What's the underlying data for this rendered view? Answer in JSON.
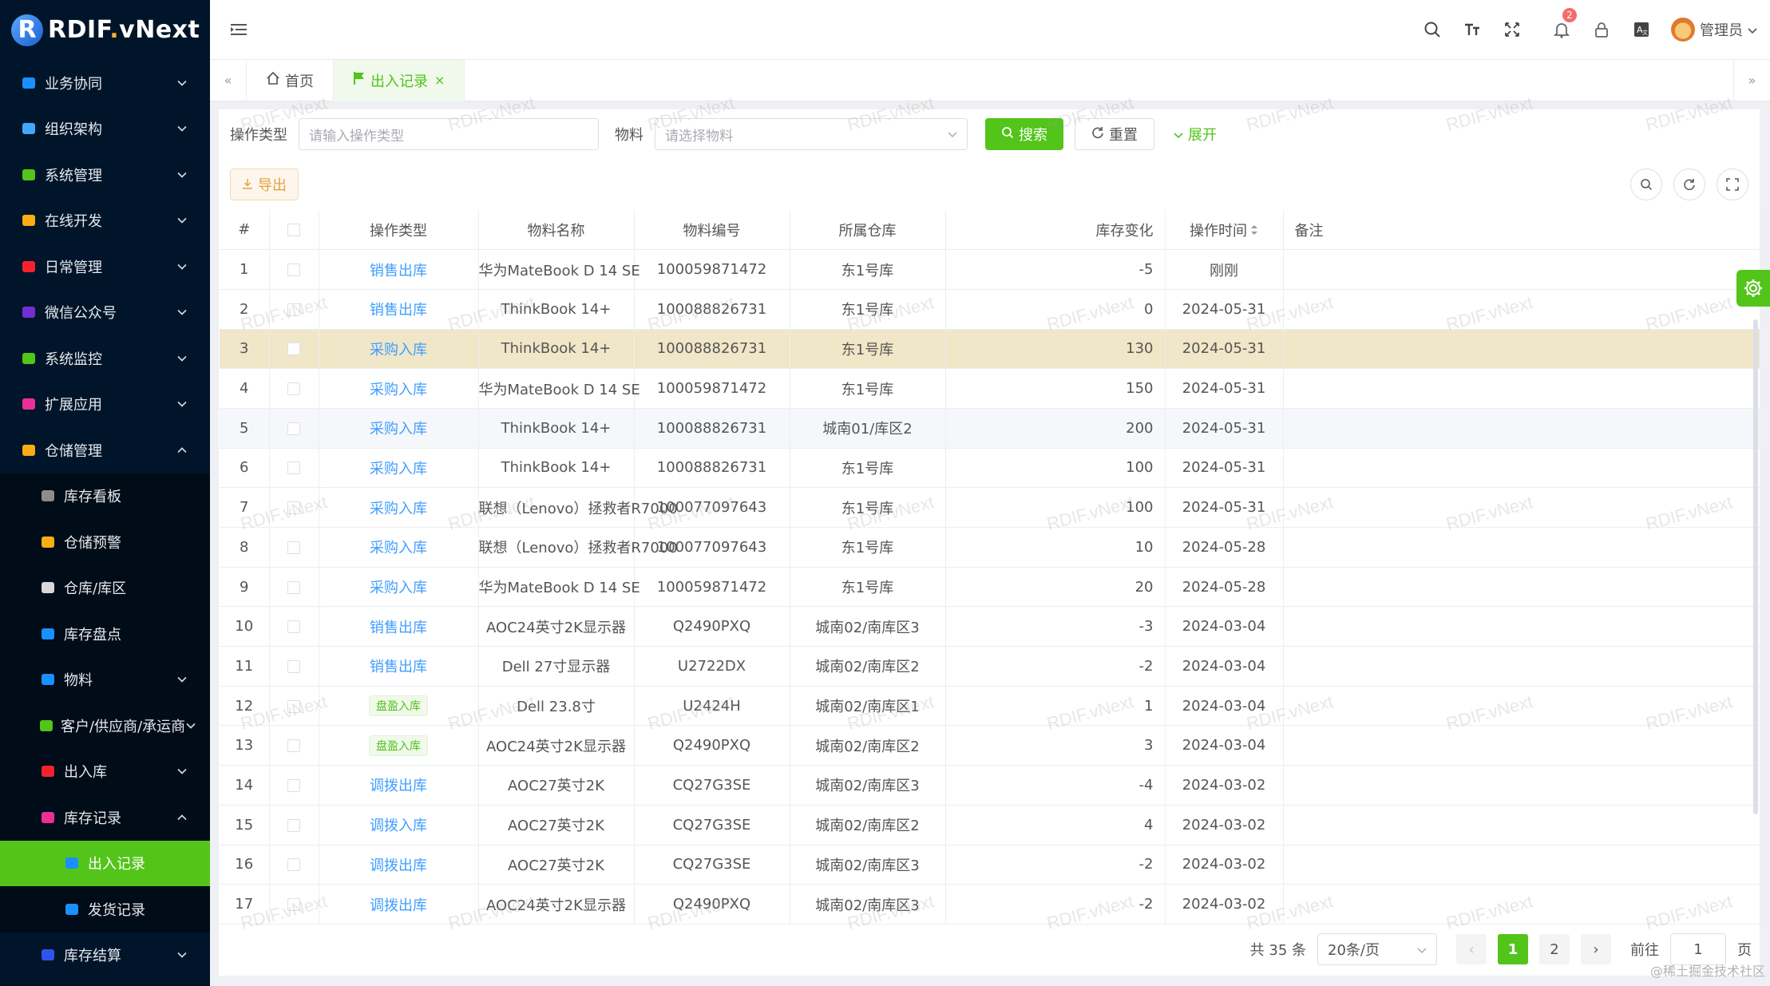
{
  "brand": {
    "logo_letter": "R",
    "name_part1": "RDIF",
    "name_dot": ".",
    "name_part2": "vNext"
  },
  "sidebar": {
    "items": [
      {
        "label": "业务协同",
        "icon": "briefcase-icon",
        "icon_color": "#1890ff",
        "expanded": false
      },
      {
        "label": "组织架构",
        "icon": "org-icon",
        "icon_color": "#40a9ff",
        "expanded": false
      },
      {
        "label": "系统管理",
        "icon": "gear-icon",
        "icon_color": "#52c41a",
        "expanded": false
      },
      {
        "label": "在线开发",
        "icon": "grid-icon",
        "icon_color": "#faad14",
        "expanded": false
      },
      {
        "label": "日常管理",
        "icon": "calendar-icon",
        "icon_color": "#f5222d",
        "expanded": false
      },
      {
        "label": "微信公众号",
        "icon": "wechat-icon",
        "icon_color": "#722ed1",
        "expanded": false
      },
      {
        "label": "系统监控",
        "icon": "monitor-icon",
        "icon_color": "#52c41a",
        "expanded": false
      },
      {
        "label": "扩展应用",
        "icon": "apps-icon",
        "icon_color": "#eb2f96",
        "expanded": false
      },
      {
        "label": "仓储管理",
        "icon": "warehouse-icon",
        "icon_color": "#faad14",
        "expanded": true
      }
    ],
    "warehouse_children": [
      {
        "label": "库存看板",
        "icon": "dashboard-icon",
        "icon_color": "#8c8c8c",
        "has_children": false
      },
      {
        "label": "仓储预警",
        "icon": "battery-icon",
        "icon_color": "#faad14",
        "has_children": false
      },
      {
        "label": "仓库/库区",
        "icon": "storage-icon",
        "icon_color": "#d9d9d9",
        "has_children": false
      },
      {
        "label": "库存盘点",
        "icon": "check-stock-icon",
        "icon_color": "#1890ff",
        "has_children": false
      },
      {
        "label": "物料",
        "icon": "material-icon",
        "icon_color": "#1890ff",
        "has_children": true,
        "expanded": false
      },
      {
        "label": "客户/供应商/承运商",
        "icon": "partner-icon",
        "icon_color": "#52c41a",
        "has_children": true,
        "expanded": false
      },
      {
        "label": "出入库",
        "icon": "inout-icon",
        "icon_color": "#f5222d",
        "has_children": true,
        "expanded": false
      },
      {
        "label": "库存记录",
        "icon": "record-icon",
        "icon_color": "#eb2f96",
        "has_children": true,
        "expanded": true
      }
    ],
    "record_children": [
      {
        "label": "出入记录",
        "active": true
      },
      {
        "label": "发货记录",
        "active": false
      }
    ],
    "last_item": {
      "label": "库存结算",
      "icon": "settle-icon",
      "icon_color": "#2f54eb"
    }
  },
  "header": {
    "notification_count": "2",
    "user_name": "管理员"
  },
  "tabs": [
    {
      "label": "首页",
      "icon": "home-icon",
      "active": false
    },
    {
      "label": "出入记录",
      "icon": "flag-icon",
      "active": true,
      "closable": true
    }
  ],
  "filter": {
    "op_type_label": "操作类型",
    "op_type_placeholder": "请输入操作类型",
    "material_label": "物料",
    "material_placeholder": "请选择物料",
    "search_label": "搜索",
    "reset_label": "重置",
    "expand_label": "展开"
  },
  "toolbar": {
    "export_label": "导出"
  },
  "table": {
    "columns": [
      "#",
      "",
      "操作类型",
      "物料名称",
      "物料编号",
      "所属仓库",
      "库存变化",
      "操作时间",
      "备注"
    ],
    "rows": [
      {
        "idx": "1",
        "type": "销售出库",
        "style": "link",
        "name": "华为MateBook D 14 SE",
        "code": "100059871472",
        "wh": "东1号库",
        "delta": "-5",
        "time": "刚刚"
      },
      {
        "idx": "2",
        "type": "销售出库",
        "style": "link",
        "name": "ThinkBook 14+",
        "code": "100088826731",
        "wh": "东1号库",
        "delta": "0",
        "time": "2024-05-31"
      },
      {
        "idx": "3",
        "type": "采购入库",
        "style": "link",
        "name": "ThinkBook 14+",
        "code": "100088826731",
        "wh": "东1号库",
        "delta": "130",
        "time": "2024-05-31"
      },
      {
        "idx": "4",
        "type": "采购入库",
        "style": "link",
        "name": "华为MateBook D 14 SE",
        "code": "100059871472",
        "wh": "东1号库",
        "delta": "150",
        "time": "2024-05-31"
      },
      {
        "idx": "5",
        "type": "采购入库",
        "style": "link",
        "name": "ThinkBook 14+",
        "code": "100088826731",
        "wh": "城南01/库区2",
        "delta": "200",
        "time": "2024-05-31"
      },
      {
        "idx": "6",
        "type": "采购入库",
        "style": "link",
        "name": "ThinkBook 14+",
        "code": "100088826731",
        "wh": "东1号库",
        "delta": "100",
        "time": "2024-05-31"
      },
      {
        "idx": "7",
        "type": "采购入库",
        "style": "link",
        "name": "联想（Lenovo）拯救者R7000",
        "code": "100077097643",
        "wh": "东1号库",
        "delta": "100",
        "time": "2024-05-31"
      },
      {
        "idx": "8",
        "type": "采购入库",
        "style": "link",
        "name": "联想（Lenovo）拯救者R7000",
        "code": "100077097643",
        "wh": "东1号库",
        "delta": "10",
        "time": "2024-05-28"
      },
      {
        "idx": "9",
        "type": "采购入库",
        "style": "link",
        "name": "华为MateBook D 14 SE",
        "code": "100059871472",
        "wh": "东1号库",
        "delta": "20",
        "time": "2024-05-28"
      },
      {
        "idx": "10",
        "type": "销售出库",
        "style": "link",
        "name": "AOC24英寸2K显示器",
        "code": "Q2490PXQ",
        "wh": "城南02/南库区3",
        "delta": "-3",
        "time": "2024-03-04"
      },
      {
        "idx": "11",
        "type": "销售出库",
        "style": "link",
        "name": "Dell 27寸显示器",
        "code": "U2722DX",
        "wh": "城南02/南库区2",
        "delta": "-2",
        "time": "2024-03-04"
      },
      {
        "idx": "12",
        "type": "盘盈入库",
        "style": "tag",
        "name": "Dell 23.8寸",
        "code": "U2424H",
        "wh": "城南02/南库区1",
        "delta": "1",
        "time": "2024-03-04"
      },
      {
        "idx": "13",
        "type": "盘盈入库",
        "style": "tag",
        "name": "AOC24英寸2K显示器",
        "code": "Q2490PXQ",
        "wh": "城南02/南库区2",
        "delta": "3",
        "time": "2024-03-04"
      },
      {
        "idx": "14",
        "type": "调拨出库",
        "style": "link",
        "name": "AOC27英寸2K",
        "code": "CQ27G3SE",
        "wh": "城南02/南库区3",
        "delta": "-4",
        "time": "2024-03-02"
      },
      {
        "idx": "15",
        "type": "调拨入库",
        "style": "link",
        "name": "AOC27英寸2K",
        "code": "CQ27G3SE",
        "wh": "城南02/南库区2",
        "delta": "4",
        "time": "2024-03-02"
      },
      {
        "idx": "16",
        "type": "调拨出库",
        "style": "link",
        "name": "AOC27英寸2K",
        "code": "CQ27G3SE",
        "wh": "城南02/南库区3",
        "delta": "-2",
        "time": "2024-03-02"
      },
      {
        "idx": "17",
        "type": "调拨出库",
        "style": "link",
        "name": "AOC24英寸2K显示器",
        "code": "Q2490PXQ",
        "wh": "城南02/南库区3",
        "delta": "-2",
        "time": "2024-03-02"
      }
    ]
  },
  "pagination": {
    "total_text": "共 35 条",
    "page_size": "20条/页",
    "pages": [
      "1",
      "2"
    ],
    "current_page": "1",
    "goto_prefix": "前往",
    "goto_value": "1",
    "goto_suffix": "页"
  },
  "watermark": {
    "text": "RDIF.vNext"
  },
  "footer_credit": "@稀土掘金技术社区",
  "colors": {
    "accent": "#52c41a",
    "sidebar_bg": "#001529",
    "link": "#409eff",
    "highlight_row": "#f0e6c8"
  }
}
